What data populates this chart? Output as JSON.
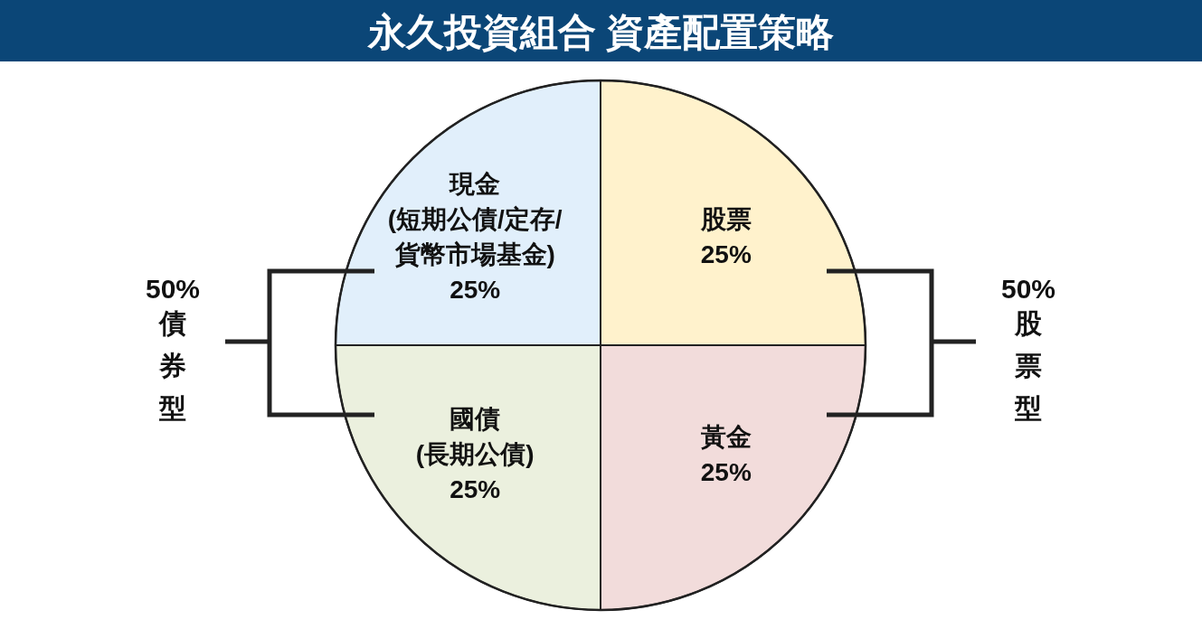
{
  "chart_data": {
    "type": "pie",
    "title": "永久投資組合 資產配置策略",
    "categories": [
      "股票",
      "黃金",
      "國債\n(長期公債)",
      "現金\n(短期公債/定存/\n貨幣市場基金)"
    ],
    "values": [
      25,
      25,
      25,
      25
    ],
    "colors": [
      "#fff2cc",
      "#f2dcdb",
      "#ebf0de",
      "#e1effb"
    ],
    "value_labels": [
      "25%",
      "25%",
      "25%",
      "25%"
    ],
    "annotations": [
      "50%",
      "債券型",
      "50%",
      "股票型"
    ]
  }
}
